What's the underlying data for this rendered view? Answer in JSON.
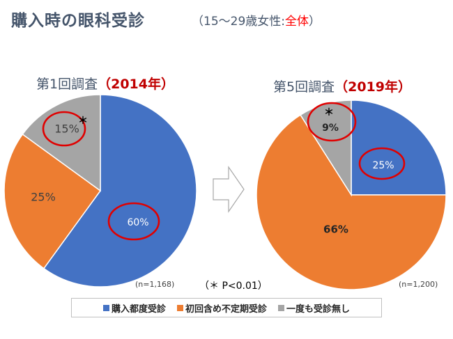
{
  "header": {
    "title": "購入時の眼科受診",
    "subtitle_prefix": "（15～29歳女性:",
    "subtitle_highlight": "全体",
    "subtitle_suffix": "）"
  },
  "chart_data": [
    {
      "type": "pie",
      "title": "第1回調査",
      "title_year": "（2014年）",
      "categories": [
        "購入都度受診",
        "初回含め不定期受診",
        "一度も受診無し"
      ],
      "values": [
        60,
        25,
        15
      ],
      "labels": [
        "60%",
        "25%",
        "15%"
      ],
      "sample_size": "(n=1,168)",
      "significance_mark": "＊",
      "colors": [
        "#4472c4",
        "#ed7d31",
        "#a5a5a5"
      ]
    },
    {
      "type": "pie",
      "title": "第5回調査",
      "title_year": "（2019年）",
      "categories": [
        "購入都度受診",
        "初回含め不定期受診",
        "一度も受診無し"
      ],
      "values": [
        25,
        66,
        9
      ],
      "labels": [
        "25%",
        "66%",
        "9%"
      ],
      "sample_size": "(n=1,200)",
      "significance_mark": "＊",
      "colors": [
        "#4472c4",
        "#ed7d31",
        "#a5a5a5"
      ]
    }
  ],
  "significance_note": "（＊ P<0.01）",
  "legend": {
    "items": [
      {
        "label": "購入都度受診",
        "color": "#4472c4"
      },
      {
        "label": "初回含め不定期受診",
        "color": "#ed7d31"
      },
      {
        "label": "一度も受診無し",
        "color": "#a5a5a5"
      }
    ]
  }
}
